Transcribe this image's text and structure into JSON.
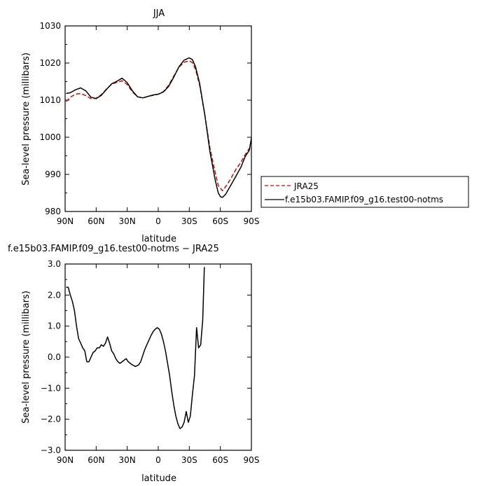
{
  "chart_data": [
    {
      "type": "line",
      "title": "JJA",
      "xlabel": "latitude",
      "ylabel": "Sea-level pressure (millibars)",
      "xlim": [
        90,
        -90
      ],
      "ylim": [
        980,
        1030
      ],
      "x_ticks": [
        90,
        60,
        30,
        0,
        -30,
        -60,
        -90
      ],
      "x_tick_labels": [
        "90N",
        "60N",
        "30N",
        "0",
        "30S",
        "60S",
        "90S"
      ],
      "y_ticks": [
        980,
        990,
        1000,
        1010,
        1020,
        1030
      ],
      "y_tick_labels": [
        "980",
        "990",
        "1000",
        "1010",
        "1020",
        "1030"
      ],
      "legend": "outside-right",
      "series": [
        {
          "name": "JRA25",
          "color": "#e00000",
          "dash": "dashed",
          "points": [
            [
              89,
              1009.6
            ],
            [
              85,
              1010.8
            ],
            [
              80,
              1011.6
            ],
            [
              75,
              1011.8
            ],
            [
              70,
              1011.2
            ],
            [
              65,
              1010.4
            ],
            [
              60,
              1010.5
            ],
            [
              55,
              1011.5
            ],
            [
              50,
              1013.0
            ],
            [
              45,
              1014.3
            ],
            [
              40,
              1014.8
            ],
            [
              35,
              1015.2
            ],
            [
              30,
              1014.2
            ],
            [
              25,
              1012.2
            ],
            [
              20,
              1010.9
            ],
            [
              15,
              1010.6
            ],
            [
              10,
              1011.0
            ],
            [
              5,
              1011.3
            ],
            [
              0,
              1011.6
            ],
            [
              -5,
              1012.3
            ],
            [
              -10,
              1014.0
            ],
            [
              -15,
              1016.5
            ],
            [
              -20,
              1018.9
            ],
            [
              -25,
              1020.2
            ],
            [
              -30,
              1020.6
            ],
            [
              -33,
              1020.1
            ],
            [
              -36,
              1018.3
            ],
            [
              -40,
              1014.0
            ],
            [
              -45,
              1006.0
            ],
            [
              -50,
              997.0
            ],
            [
              -55,
              990.5
            ],
            [
              -58,
              987.0
            ],
            [
              -62,
              985.6
            ],
            [
              -66,
              987.0
            ],
            [
              -70,
              988.8
            ],
            [
              -75,
              991.3
            ],
            [
              -80,
              993.3
            ],
            [
              -84,
              995.3
            ],
            [
              -88,
              997.0
            ],
            [
              -90,
              997.5
            ]
          ]
        },
        {
          "name": "f.e15b03.FAMIP.f09_g16.test00-notms",
          "color": "#000000",
          "dash": "solid",
          "points": [
            [
              89,
              1011.8
            ],
            [
              85,
              1012.0
            ],
            [
              80,
              1012.8
            ],
            [
              75,
              1013.3
            ],
            [
              70,
              1012.5
            ],
            [
              65,
              1010.8
            ],
            [
              60,
              1010.4
            ],
            [
              55,
              1011.3
            ],
            [
              50,
              1012.9
            ],
            [
              45,
              1014.4
            ],
            [
              40,
              1015.1
            ],
            [
              35,
              1015.9
            ],
            [
              30,
              1014.7
            ],
            [
              25,
              1012.5
            ],
            [
              20,
              1010.9
            ],
            [
              15,
              1010.6
            ],
            [
              10,
              1011.0
            ],
            [
              5,
              1011.4
            ],
            [
              0,
              1011.6
            ],
            [
              -5,
              1012.2
            ],
            [
              -10,
              1013.7
            ],
            [
              -15,
              1016.2
            ],
            [
              -20,
              1019.0
            ],
            [
              -25,
              1020.8
            ],
            [
              -30,
              1021.4
            ],
            [
              -33,
              1020.9
            ],
            [
              -36,
              1019.0
            ],
            [
              -40,
              1014.5
            ],
            [
              -45,
              1006.0
            ],
            [
              -50,
              996.0
            ],
            [
              -55,
              988.5
            ],
            [
              -58,
              985.0
            ],
            [
              -60,
              984.0
            ],
            [
              -62,
              983.8
            ],
            [
              -65,
              984.6
            ],
            [
              -70,
              987.0
            ],
            [
              -75,
              989.5
            ],
            [
              -80,
              992.0
            ],
            [
              -84,
              994.8
            ],
            [
              -88,
              996.5
            ],
            [
              -90,
              999.8
            ]
          ]
        }
      ]
    },
    {
      "type": "line",
      "title": "f.e15b03.FAMIP.f09_g16.test00-notms  −  JRA25",
      "xlabel": "latitude",
      "ylabel": "Sea-level pressure (millibars)",
      "xlim": [
        90,
        -90
      ],
      "ylim": [
        -3.0,
        3.0
      ],
      "x_ticks": [
        90,
        60,
        30,
        0,
        -30,
        -60,
        -90
      ],
      "x_tick_labels": [
        "90N",
        "60N",
        "30N",
        "0",
        "30S",
        "60S",
        "90S"
      ],
      "y_ticks": [
        -3.0,
        -2.0,
        -1.0,
        0.0,
        1.0,
        2.0,
        3.0
      ],
      "y_tick_labels": [
        "−3.0",
        "−2.0",
        "−1.0",
        "0.0",
        "1.0",
        "2.0",
        "3.0"
      ],
      "series": [
        {
          "color": "#000000",
          "dash": "solid",
          "points": [
            [
              89,
              2.25
            ],
            [
              87,
              2.25
            ],
            [
              85,
              2.0
            ],
            [
              83,
              1.8
            ],
            [
              81,
              1.5
            ],
            [
              79,
              1.0
            ],
            [
              77,
              0.6
            ],
            [
              75,
              0.45
            ],
            [
              73,
              0.3
            ],
            [
              71,
              0.2
            ],
            [
              69,
              -0.15
            ],
            [
              67,
              -0.15
            ],
            [
              65,
              0.0
            ],
            [
              63,
              0.15
            ],
            [
              61,
              0.2
            ],
            [
              59,
              0.3
            ],
            [
              57,
              0.3
            ],
            [
              55,
              0.4
            ],
            [
              53,
              0.35
            ],
            [
              51,
              0.45
            ],
            [
              49,
              0.65
            ],
            [
              47,
              0.45
            ],
            [
              45,
              0.2
            ],
            [
              43,
              0.1
            ],
            [
              41,
              -0.05
            ],
            [
              39,
              -0.15
            ],
            [
              37,
              -0.2
            ],
            [
              35,
              -0.15
            ],
            [
              33,
              -0.1
            ],
            [
              31,
              -0.05
            ],
            [
              29,
              -0.15
            ],
            [
              27,
              -0.2
            ],
            [
              25,
              -0.25
            ],
            [
              22,
              -0.3
            ],
            [
              19,
              -0.25
            ],
            [
              17,
              -0.15
            ],
            [
              15,
              0.05
            ],
            [
              13,
              0.25
            ],
            [
              11,
              0.4
            ],
            [
              9,
              0.55
            ],
            [
              7,
              0.7
            ],
            [
              5,
              0.82
            ],
            [
              3,
              0.9
            ],
            [
              1,
              0.95
            ],
            [
              -1,
              0.9
            ],
            [
              -3,
              0.75
            ],
            [
              -5,
              0.5
            ],
            [
              -7,
              0.2
            ],
            [
              -9,
              -0.2
            ],
            [
              -11,
              -0.6
            ],
            [
              -13,
              -1.1
            ],
            [
              -15,
              -1.55
            ],
            [
              -17,
              -1.9
            ],
            [
              -19,
              -2.15
            ],
            [
              -21,
              -2.3
            ],
            [
              -23,
              -2.25
            ],
            [
              -25,
              -2.1
            ],
            [
              -27,
              -1.75
            ],
            [
              -29,
              -2.1
            ],
            [
              -31,
              -1.9
            ],
            [
              -33,
              -1.2
            ],
            [
              -35,
              -0.6
            ],
            [
              -37,
              0.95
            ],
            [
              -39,
              0.3
            ],
            [
              -41,
              0.4
            ],
            [
              -43,
              1.2
            ],
            [
              -44.5,
              2.9
            ]
          ]
        }
      ]
    }
  ]
}
